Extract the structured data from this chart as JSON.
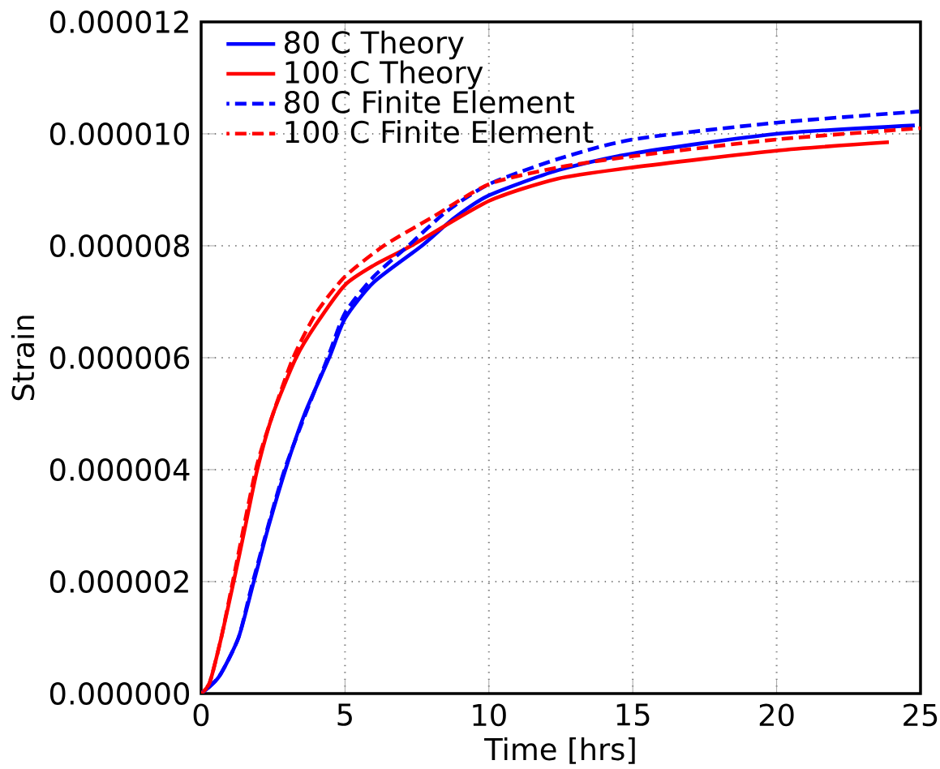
{
  "chart_data": {
    "type": "line",
    "xlabel": "Time [hrs]",
    "ylabel": "Strain",
    "xlim": [
      0,
      25
    ],
    "ylim": [
      0,
      1.2e-05
    ],
    "xticks": [
      0,
      5,
      10,
      15,
      20,
      25
    ],
    "yticks": [
      {
        "value": 0,
        "label": "0.000000"
      },
      {
        "value": 2e-06,
        "label": "0.000002"
      },
      {
        "value": 4e-06,
        "label": "0.000004"
      },
      {
        "value": 6e-06,
        "label": "0.000006"
      },
      {
        "value": 8e-06,
        "label": "0.000008"
      },
      {
        "value": 1e-05,
        "label": "0.000010"
      },
      {
        "value": 1.2e-05,
        "label": "0.000012"
      }
    ],
    "grid": true,
    "legend": "top left",
    "series": [
      {
        "name": "80 C Theory",
        "color": "#0000ff",
        "line_style": "solid",
        "x": [
          0,
          0.62,
          1.3,
          1.83,
          2.35,
          2.93,
          3.6,
          4.45,
          5,
          6,
          7.67,
          8.8,
          10,
          12.4,
          15,
          20,
          24.8
        ],
        "values": [
          0,
          3e-07,
          1e-06,
          2e-06,
          3e-06,
          4e-06,
          5e-06,
          6e-06,
          6.7e-06,
          7.35e-06,
          8e-06,
          8.5e-06,
          8.9e-06,
          9.35e-06,
          9.65e-06,
          1e-05,
          1.015e-05
        ]
      },
      {
        "name": "100 C Theory",
        "color": "#ff0000",
        "line_style": "solid",
        "x": [
          0,
          0.3,
          0.7,
          1.13,
          1.5,
          1.95,
          2.5,
          3.3,
          4,
          5,
          6,
          7.3,
          10,
          12.4,
          15,
          20,
          23.9
        ],
        "values": [
          0,
          2e-07,
          1e-06,
          2e-06,
          2.9e-06,
          4e-06,
          5e-06,
          6e-06,
          6.6e-06,
          7.3e-06,
          7.65e-06,
          8e-06,
          8.8e-06,
          9.2e-06,
          9.4e-06,
          9.7e-06,
          9.85e-06
        ]
      },
      {
        "name": "80 C Finite Element",
        "color": "#0000ff",
        "line_style": "dashed",
        "x": [
          0,
          0.62,
          1.3,
          1.8,
          2.9,
          4.4,
          5,
          6,
          7.2,
          8.5,
          10,
          12.4,
          15,
          20,
          24.95
        ],
        "values": [
          0,
          3e-07,
          1e-06,
          2e-06,
          4e-06,
          6e-06,
          6.8e-06,
          7.45e-06,
          8e-06,
          8.6e-06,
          9.1e-06,
          9.55e-06,
          9.9e-06,
          1.02e-05,
          1.04e-05
        ]
      },
      {
        "name": "100 C Finite Element",
        "color": "#ff0000",
        "line_style": "dashed",
        "x": [
          0,
          0.3,
          0.7,
          1.1,
          1.9,
          2.5,
          3.2,
          4,
          5,
          6.35,
          8,
          10,
          12.4,
          15,
          20,
          25
        ],
        "values": [
          0,
          2e-07,
          1e-06,
          2e-06,
          4e-06,
          5e-06,
          6e-06,
          6.8e-06,
          7.45e-06,
          8e-06,
          8.5e-06,
          9.1e-06,
          9.4e-06,
          9.6e-06,
          9.9e-06,
          1.01e-05
        ]
      }
    ]
  }
}
